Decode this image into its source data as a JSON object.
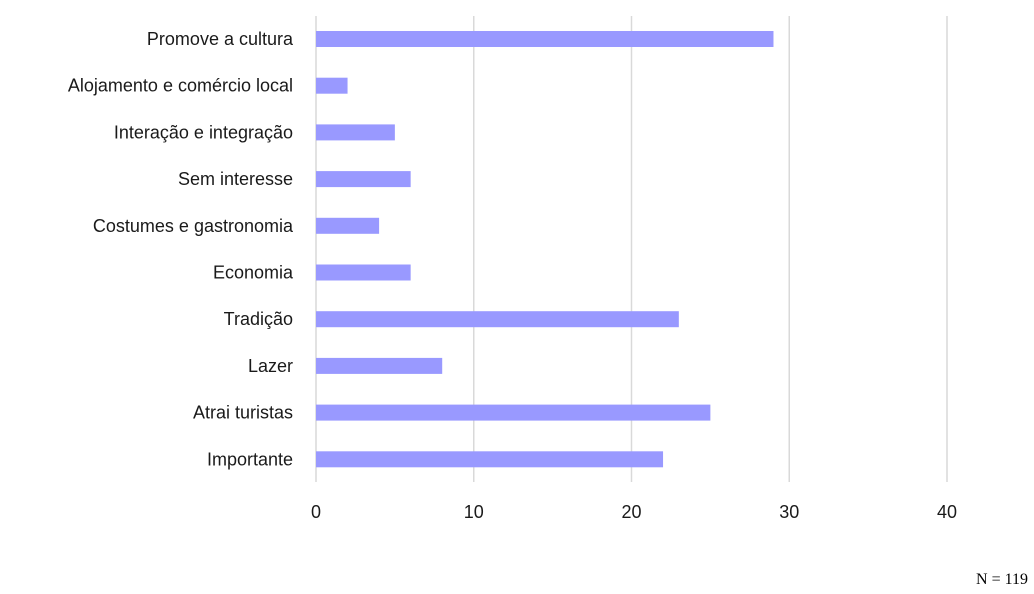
{
  "chart_data": {
    "type": "bar",
    "orientation": "horizontal",
    "categories": [
      "Promove a cultura",
      "Alojamento e comércio local",
      "Interação e integração",
      "Sem interesse",
      "Costumes e gastronomia",
      "Economia",
      "Tradição",
      "Lazer",
      "Atrai turistas",
      "Importante"
    ],
    "values": [
      29,
      2,
      5,
      6,
      4,
      6,
      23,
      8,
      25,
      22
    ],
    "xlim": [
      0,
      40
    ],
    "xticks": [
      0,
      10,
      20,
      30,
      40
    ],
    "grid": "vertical",
    "bar_color": "#9999ff",
    "grid_color": "#d9d9d9",
    "legend": "none"
  },
  "note": "N = 119"
}
